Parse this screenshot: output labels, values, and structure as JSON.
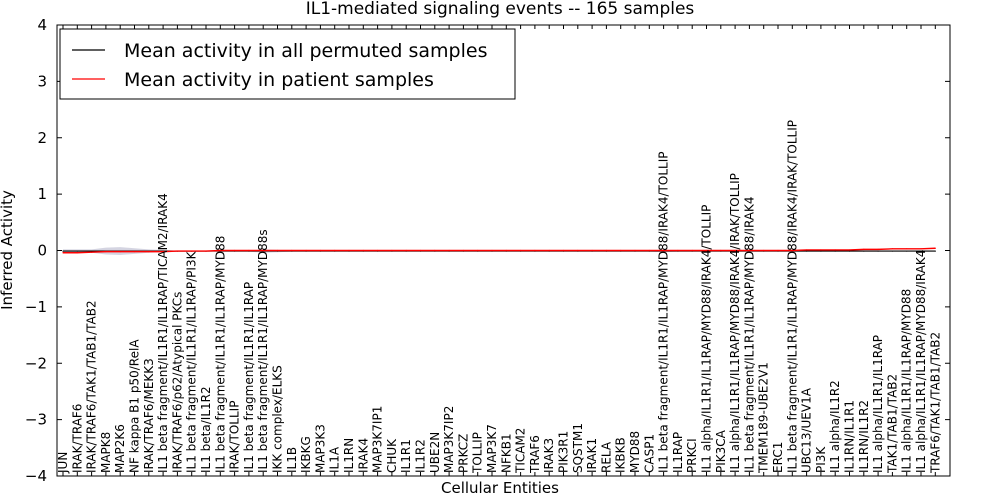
{
  "chart_data": {
    "type": "line",
    "title": "IL1-mediated signaling events -- 165 samples",
    "xlabel": "Cellular Entities",
    "ylabel": "Inferred Activity",
    "ylim": [
      -4,
      4
    ],
    "yticks": [
      -4,
      -3,
      -2,
      -1,
      0,
      1,
      2,
      3,
      4
    ],
    "grid": false,
    "legend_position": "top-left",
    "categories": [
      "JUN",
      "IRAK/TRAF6",
      "IRAK/TRAF6/TAK1/TAB1/TAB2",
      "MAPK8",
      "MAP2K6",
      "NF kappa B1 p50/RelA",
      "IRAK/TRAF6/MEKK3",
      "IL1 beta fragment/IL1R1/IL1RAP/TICAM2/IRAK4",
      "IRAK/TRAF6/p62/Atypical PKCs",
      "IL1 beta fragment/IL1R1/IL1RAP/PI3K",
      "IL1 beta/IL1R2",
      "IL1 beta fragment/IL1R1/IL1RAP/MYD88",
      "IRAK/TOLLIP",
      "IL1 beta fragment/IL1R1/IL1RAP",
      "IL1 beta fragment/IL1R1/IL1RAP/MYD88s",
      "IKK complex/ELKS",
      "IL1B",
      "IKBKG",
      "MAP3K3",
      "IL1A",
      "IL1RN",
      "IRAK4",
      "MAP3K7IP1",
      "CHUK",
      "IL1R1",
      "IL1R2",
      "UBE2N",
      "MAP3K7IP2",
      "PRKCZ",
      "TOLLIP",
      "MAP3K7",
      "NFKB1",
      "TICAM2",
      "TRAF6",
      "IRAK3",
      "PIK3R1",
      "SQSTM1",
      "IRAK1",
      "RELA",
      "IKBKB",
      "MYD88",
      "CASP1",
      "IL1 beta fragment/IL1R1/IL1RAP/MYD88/IRAK4/TOLLIP",
      "IL1RAP",
      "PRKCI",
      "IL1 alpha/IL1R1/IL1RAP/MYD88/IRAK4/TOLLIP",
      "PIK3CA",
      "IL1 alpha/IL1R1/IL1RAP/MYD88/IRAK4/IRAK/TOLLIP",
      "IL1 beta fragment/IL1R1/IL1RAP/MYD88/IRAK4",
      "TMEM189-UBE2V1",
      "ERC1",
      "IL1 beta fragment/IL1R1/IL1RAP/MYD88/IRAK4/IRAK/TOLLIP",
      "UBC13/UEV1A",
      "PI3K",
      "IL1 alpha/IL1R2",
      "IL1RN/IL1R1",
      "IL1RN/IL1R2",
      "IL1 alpha/IL1R1/IL1RAP",
      "TAK1/TAB1/TAB2",
      "IL1 alpha/IL1R1/IL1RAP/MYD88",
      "IL1 alpha/IL1R1/IL1RAP/MYD88/IRAK4",
      "TRAF6/TAK1/TAB1/TAB2"
    ],
    "series": [
      {
        "name": "Mean activity in all permuted samples",
        "color": "#000000",
        "values": [
          -0.01,
          -0.01,
          -0.01,
          -0.01,
          -0.01,
          -0.01,
          -0.01,
          -0.01,
          -0.01,
          -0.01,
          -0.01,
          -0.01,
          -0.01,
          -0.01,
          -0.01,
          -0.01,
          -0.01,
          -0.01,
          -0.01,
          -0.01,
          -0.01,
          -0.01,
          -0.01,
          -0.01,
          -0.01,
          -0.01,
          -0.01,
          -0.01,
          -0.01,
          -0.01,
          -0.01,
          -0.01,
          -0.01,
          -0.01,
          -0.01,
          -0.01,
          -0.01,
          -0.01,
          -0.01,
          -0.01,
          -0.01,
          -0.01,
          -0.01,
          -0.01,
          -0.01,
          -0.01,
          -0.01,
          -0.01,
          -0.01,
          -0.01,
          -0.01,
          -0.01,
          -0.01,
          -0.01,
          -0.01,
          -0.01,
          -0.01,
          -0.01,
          -0.01,
          -0.01,
          -0.01,
          -0.01
        ]
      },
      {
        "name": "Mean activity in patient samples",
        "color": "#ff0000",
        "values": [
          -0.04,
          -0.04,
          -0.03,
          -0.02,
          -0.02,
          -0.02,
          -0.02,
          -0.02,
          -0.01,
          -0.01,
          -0.01,
          0.0,
          0.0,
          0.0,
          0.0,
          0.0,
          0.0,
          0.0,
          0.0,
          0.0,
          0.0,
          0.0,
          0.0,
          0.0,
          0.0,
          0.0,
          0.0,
          0.0,
          0.0,
          0.0,
          0.0,
          0.0,
          0.0,
          0.0,
          0.0,
          0.0,
          0.0,
          0.0,
          0.0,
          0.0,
          0.0,
          0.0,
          0.0,
          0.0,
          0.0,
          0.0,
          0.0,
          0.0,
          0.0,
          0.0,
          0.0,
          0.0,
          0.01,
          0.01,
          0.01,
          0.01,
          0.02,
          0.02,
          0.03,
          0.03,
          0.03,
          0.04
        ]
      }
    ],
    "spread": {
      "color": "#b0b0c8",
      "half_width": [
        0.03,
        0.03,
        0.03,
        0.06,
        0.07,
        0.05,
        0.03,
        0.02,
        0.01,
        0.01,
        0.01,
        0.01,
        0.01,
        0.01,
        0.03,
        0.02,
        0.01,
        0.01,
        0.01,
        0.01,
        0.01,
        0.01,
        0.01,
        0.01,
        0.01,
        0.01,
        0.01,
        0.01,
        0.01,
        0.01,
        0.01,
        0.01,
        0.01,
        0.01,
        0.01,
        0.01,
        0.01,
        0.01,
        0.01,
        0.01,
        0.01,
        0.01,
        0.02,
        0.01,
        0.01,
        0.01,
        0.01,
        0.01,
        0.01,
        0.01,
        0.01,
        0.01,
        0.01,
        0.01,
        0.01,
        0.01,
        0.01,
        0.01,
        0.01,
        0.01,
        0.01,
        0.01
      ]
    }
  }
}
